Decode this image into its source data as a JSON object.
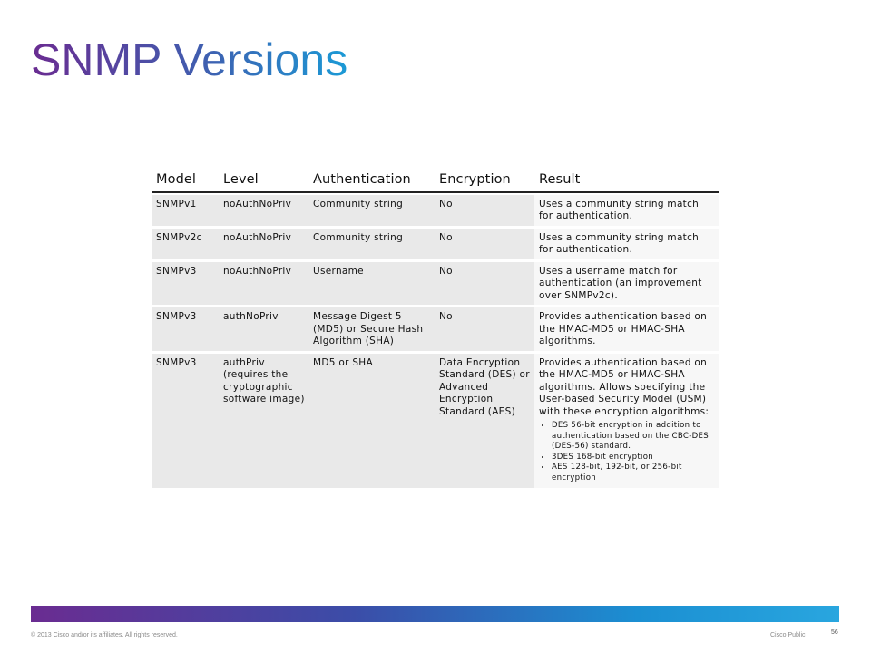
{
  "slide": {
    "title": "SNMP Versions"
  },
  "table": {
    "headers": [
      "Model",
      "Level",
      "Authentication",
      "Encryption",
      "Result"
    ],
    "rows": [
      {
        "model": "SNMPv1",
        "level": "noAuthNoPriv",
        "authentication": "Community string",
        "encryption": "No",
        "result": "Uses a community string match for authentication."
      },
      {
        "model": "SNMPv2c",
        "level": "noAuthNoPriv",
        "authentication": "Community string",
        "encryption": "No",
        "result": "Uses a community string match for authentication."
      },
      {
        "model": "SNMPv3",
        "level": "noAuthNoPriv",
        "authentication": "Username",
        "encryption": "No",
        "result": "Uses a username match for authentication (an improvement over SNMPv2c)."
      },
      {
        "model": "SNMPv3",
        "level": "authNoPriv",
        "authentication": "Message Digest 5 (MD5) or Secure Hash Algorithm (SHA)",
        "encryption": "No",
        "result": "Provides authentication based on the HMAC-MD5 or HMAC-SHA algorithms."
      },
      {
        "model": "SNMPv3",
        "level": "authPriv (requires the cryptographic software image)",
        "authentication": "MD5 or SHA",
        "encryption": "Data Encryption Standard (DES) or Advanced Encryption Standard (AES)",
        "result": "Provides authentication based on the HMAC-MD5 or HMAC-SHA algorithms. Allows specifying the User-based Security Model (USM) with these encryption algorithms:",
        "bullets": [
          "DES 56-bit encryption in addition to authentication based on the CBC-DES (DES-56) standard.",
          "3DES 168-bit encryption",
          "AES 128-bit, 192-bit, or 256-bit encryption"
        ]
      }
    ]
  },
  "footer": {
    "copyright": "© 2013 Cisco and/or its affiliates. All rights reserved.",
    "classification": "Cisco Public",
    "page_number": "56"
  },
  "colors": {
    "title_gradient_start": "#6a2c91",
    "title_gradient_end": "#1b9ad6",
    "row_shade": "#e9e9e9"
  }
}
